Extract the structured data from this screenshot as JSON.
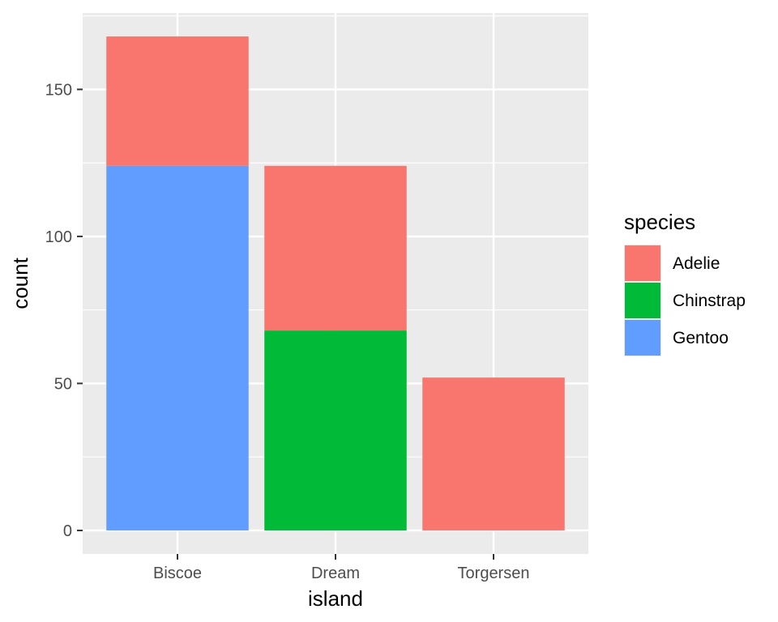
{
  "chart_data": {
    "type": "bar",
    "stacked": true,
    "categories": [
      "Biscoe",
      "Dream",
      "Torgersen"
    ],
    "series": [
      {
        "name": "Adelie",
        "values": [
          44,
          56,
          52
        ],
        "color": "#F8766D"
      },
      {
        "name": "Chinstrap",
        "values": [
          0,
          68,
          0
        ],
        "color": "#00BA38"
      },
      {
        "name": "Gentoo",
        "values": [
          124,
          0,
          0
        ],
        "color": "#619CFF"
      }
    ],
    "xlabel": "island",
    "ylabel": "count",
    "ylim": [
      -8,
      176
    ],
    "yticks": [
      0,
      50,
      100,
      150
    ],
    "ytick_labels": [
      "0",
      "50",
      "100",
      "150"
    ],
    "grid": true,
    "legend": {
      "title": "species",
      "placement": "right"
    },
    "panel_background": "#EBEBEB",
    "gridline_color": "#FFFFFF"
  }
}
